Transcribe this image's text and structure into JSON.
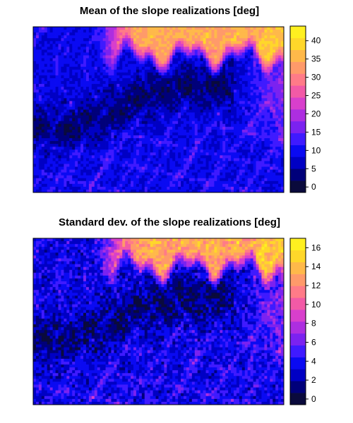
{
  "chart_data": [
    {
      "type": "heatmap",
      "title": "Mean of the slope realizations [deg]",
      "xlabel": "",
      "ylabel": "",
      "colorbar": {
        "range": [
          -1.5,
          44
        ],
        "ticks": [
          0,
          5,
          10,
          15,
          20,
          25,
          30,
          35,
          40
        ],
        "colors": [
          "#0a0a3c",
          "#00007a",
          "#0000c4",
          "#0a0af2",
          "#3f1aff",
          "#7b22f0",
          "#ad2ee0",
          "#d83fcc",
          "#f25aa6",
          "#ff7b88",
          "#ff9a6a",
          "#ffb94a",
          "#ffd72a",
          "#fff020"
        ]
      },
      "summary": {
        "high_region": "top-right",
        "low_region": "center-left"
      }
    },
    {
      "type": "heatmap",
      "title": "Standard dev. of the slope realizations [deg]",
      "xlabel": "",
      "ylabel": "",
      "colorbar": {
        "range": [
          -0.6,
          17
        ],
        "ticks": [
          0,
          2,
          4,
          6,
          8,
          10,
          12,
          14,
          16
        ],
        "colors": [
          "#0a0a3c",
          "#00007a",
          "#0000c4",
          "#0a0af2",
          "#3f1aff",
          "#7b22f0",
          "#ad2ee0",
          "#d83fcc",
          "#f25aa6",
          "#ff7b88",
          "#ff9a6a",
          "#ffb94a",
          "#ffd72a",
          "#fff020"
        ]
      },
      "summary": {
        "high_region": "top-right",
        "low_region": "center-left"
      }
    }
  ]
}
